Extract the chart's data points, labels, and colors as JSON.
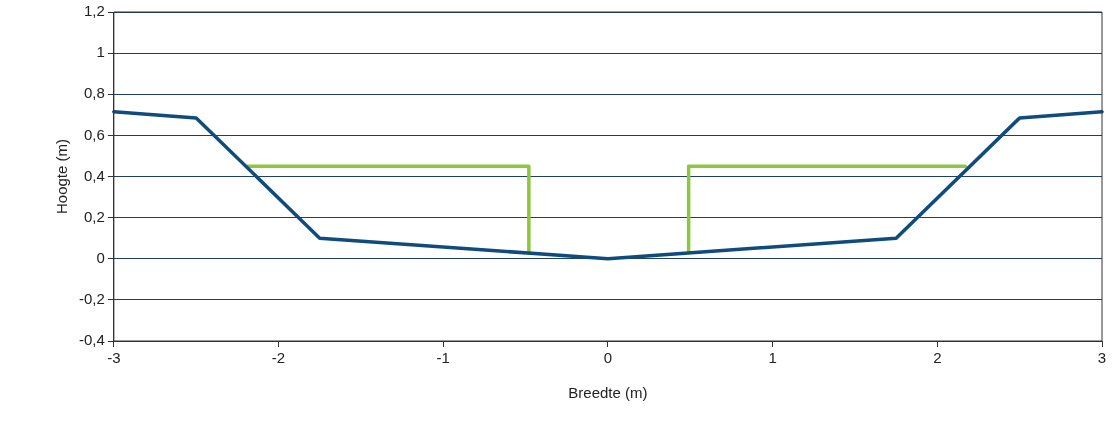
{
  "chart_data": {
    "type": "line",
    "xlabel": "Breedte (m)",
    "ylabel": "Hoogte (m)",
    "xlim": [
      -3,
      3
    ],
    "xticks": [
      -3,
      -2,
      -1,
      0,
      1,
      2,
      3
    ],
    "ylim": [
      -0.4,
      1.2
    ],
    "yticks": [
      {
        "value": -0.4,
        "label": "-0,4"
      },
      {
        "value": -0.2,
        "label": "-0,2"
      },
      0,
      {
        "value": 0.2,
        "label": "0,2"
      },
      {
        "value": 0.4,
        "label": "0,4"
      },
      {
        "value": 0.6,
        "label": "0,6"
      },
      {
        "value": 0.8,
        "label": "0,8"
      },
      1,
      {
        "value": 1.2,
        "label": "1,2"
      }
    ],
    "grid": "y",
    "legend": false,
    "marker": "none",
    "line_style": "solid",
    "series": [
      {
        "color": "#0f4c7d",
        "x": [
          -3,
          -2.5,
          -1.75,
          0,
          1.75,
          2.5,
          3
        ],
        "values": [
          0.715,
          0.685,
          0.1,
          0,
          0.1,
          0.685,
          0.715
        ]
      },
      {
        "color": "#8dc63f",
        "x": [
          -2.19,
          -0.48,
          -0.48,
          null,
          0.49,
          0.49,
          2.17
        ],
        "values": [
          0.45,
          0.45,
          0.03,
          null,
          0.03,
          0.45,
          0.45
        ]
      }
    ]
  }
}
